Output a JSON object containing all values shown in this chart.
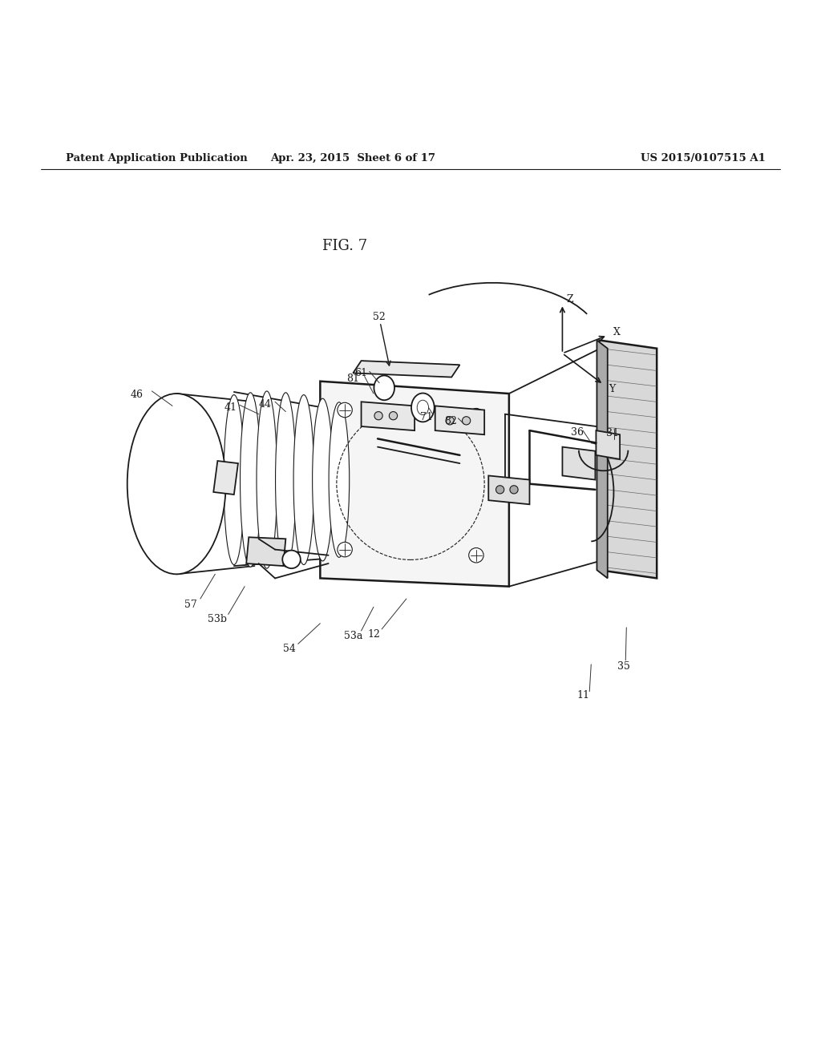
{
  "title": "FIG. 7",
  "header_left": "Patent Application Publication",
  "header_center": "Apr. 23, 2015  Sheet 6 of 17",
  "header_right": "US 2015/0107515 A1",
  "bg_color": "#ffffff",
  "text_color": "#000000",
  "line_color": "#1a1a1a",
  "lw_main": 1.3,
  "lw_thin": 0.8,
  "lw_thick": 1.8
}
